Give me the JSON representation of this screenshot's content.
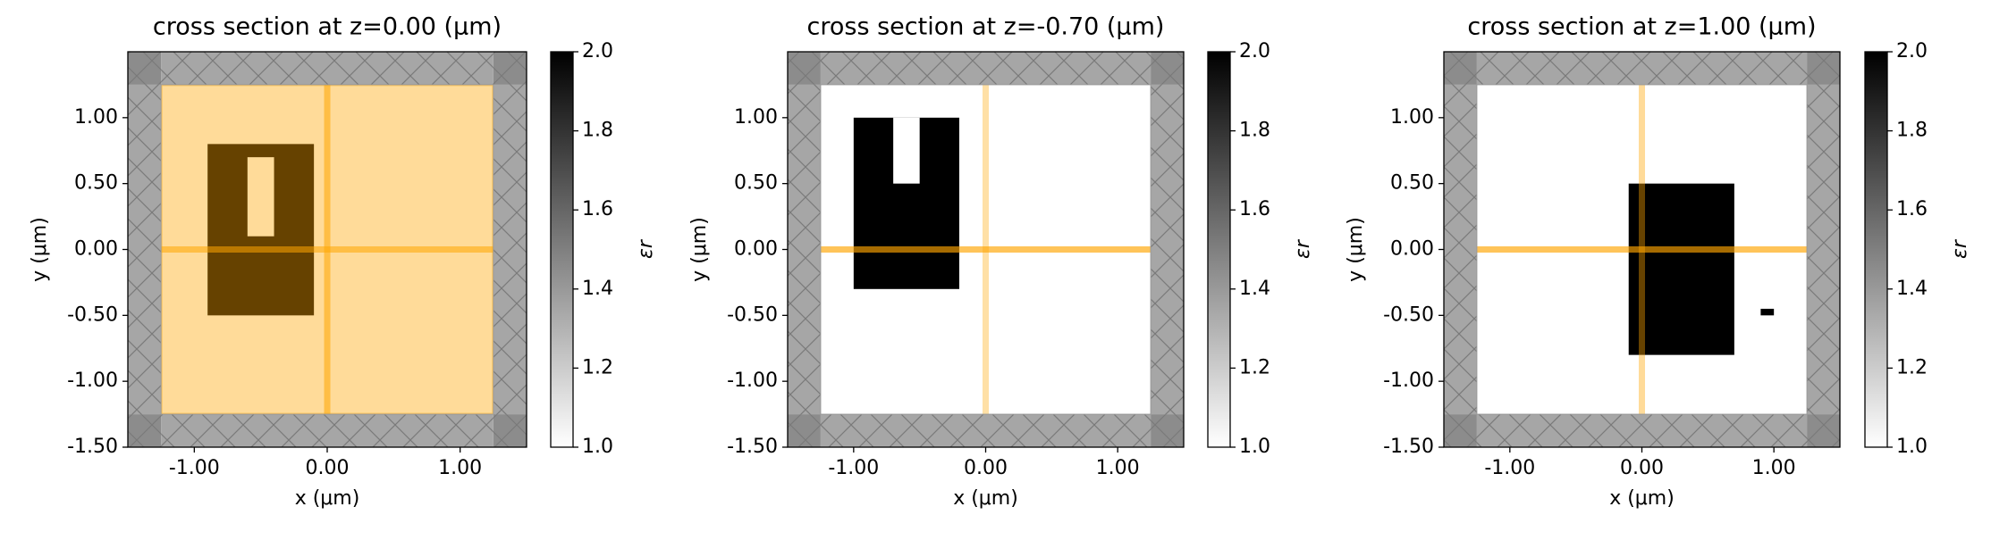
{
  "chart_data": [
    {
      "type": "structure",
      "title": "cross section at z=0.00 (μm)",
      "xlabel": "x (μm)",
      "ylabel": "y (μm)",
      "xlim": [
        -1.5,
        1.5
      ],
      "ylim": [
        -1.5,
        1.5
      ],
      "xticks": [
        {
          "value": -1,
          "label": "-1.00"
        },
        {
          "value": 0,
          "label": "0.00"
        },
        {
          "value": 1,
          "label": "1.00"
        }
      ],
      "yticks": [
        {
          "value": -1.5,
          "label": "-1.50"
        },
        {
          "value": -1,
          "label": "-1.00"
        },
        {
          "value": -0.5,
          "label": "-0.50"
        },
        {
          "value": 0,
          "label": "0.00"
        },
        {
          "value": 0.5,
          "label": "0.50"
        },
        {
          "value": 1,
          "label": "1.00"
        }
      ],
      "domain_x": [
        -1.25,
        1.25
      ],
      "domain_y": [
        -1.25,
        1.25
      ],
      "shapes": [
        {
          "x": [
            -0.9,
            -0.1
          ],
          "y": [
            -0.5,
            0.8
          ],
          "eps": 2
        },
        {
          "x": [
            -0.6,
            -0.4
          ],
          "y": [
            0.1,
            0.7
          ],
          "eps": 1
        }
      ],
      "sources": [
        {
          "x": [
            -1.25,
            1.25
          ],
          "y": [
            -1.25,
            1.25
          ],
          "color": "#ffa500",
          "alpha": 0.4
        }
      ],
      "monitors": [
        {
          "x": [
            -1.25,
            1.25
          ],
          "y": [
            0,
            0
          ],
          "color": "#ffa500",
          "alpha": 0.55
        },
        {
          "x": [
            0,
            0
          ],
          "y": [
            -1.25,
            1.25
          ],
          "color": "#ffa500",
          "alpha": 0.55
        }
      ],
      "colorbar": {
        "label": "εr",
        "clim": [
          1,
          2
        ],
        "ticks": [
          {
            "value": 1,
            "label": "1.0"
          },
          {
            "value": 1.2,
            "label": "1.2"
          },
          {
            "value": 1.4,
            "label": "1.4"
          },
          {
            "value": 1.6,
            "label": "1.6"
          },
          {
            "value": 1.8,
            "label": "1.8"
          },
          {
            "value": 2,
            "label": "2.0"
          }
        ]
      }
    },
    {
      "type": "structure",
      "title": "cross section at z=-0.70 (μm)",
      "xlabel": "x (μm)",
      "ylabel": "y (μm)",
      "xlim": [
        -1.5,
        1.5
      ],
      "ylim": [
        -1.5,
        1.5
      ],
      "xticks": [
        {
          "value": -1,
          "label": "-1.00"
        },
        {
          "value": 0,
          "label": "0.00"
        },
        {
          "value": 1,
          "label": "1.00"
        }
      ],
      "yticks": [
        {
          "value": -1.5,
          "label": "-1.50"
        },
        {
          "value": -1,
          "label": "-1.00"
        },
        {
          "value": -0.5,
          "label": "-0.50"
        },
        {
          "value": 0,
          "label": "0.00"
        },
        {
          "value": 0.5,
          "label": "0.50"
        },
        {
          "value": 1,
          "label": "1.00"
        }
      ],
      "domain_x": [
        -1.25,
        1.25
      ],
      "domain_y": [
        -1.25,
        1.25
      ],
      "shapes": [
        {
          "x": [
            -1.0,
            -0.2
          ],
          "y": [
            -0.3,
            1.0
          ],
          "eps": 2
        },
        {
          "x": [
            -0.7,
            -0.5
          ],
          "y": [
            0.5,
            1.0
          ],
          "eps": 1
        }
      ],
      "sources": [],
      "monitors": [
        {
          "x": [
            -1.25,
            1.25
          ],
          "y": [
            0,
            0
          ],
          "color": "#ffa500",
          "alpha": 0.65
        },
        {
          "x": [
            0,
            0
          ],
          "y": [
            -1.25,
            1.25
          ],
          "color": "#ffa500",
          "alpha": 0.35
        }
      ],
      "colorbar": {
        "label": "εr",
        "clim": [
          1,
          2
        ],
        "ticks": [
          {
            "value": 1,
            "label": "1.0"
          },
          {
            "value": 1.2,
            "label": "1.2"
          },
          {
            "value": 1.4,
            "label": "1.4"
          },
          {
            "value": 1.6,
            "label": "1.6"
          },
          {
            "value": 1.8,
            "label": "1.8"
          },
          {
            "value": 2,
            "label": "2.0"
          }
        ]
      }
    },
    {
      "type": "structure",
      "title": "cross section at z=1.00 (μm)",
      "xlabel": "x (μm)",
      "ylabel": "y (μm)",
      "xlim": [
        -1.5,
        1.5
      ],
      "ylim": [
        -1.5,
        1.5
      ],
      "xticks": [
        {
          "value": -1,
          "label": "-1.00"
        },
        {
          "value": 0,
          "label": "0.00"
        },
        {
          "value": 1,
          "label": "1.00"
        }
      ],
      "yticks": [
        {
          "value": -1.5,
          "label": "-1.50"
        },
        {
          "value": -1,
          "label": "-1.00"
        },
        {
          "value": -0.5,
          "label": "-0.50"
        },
        {
          "value": 0,
          "label": "0.00"
        },
        {
          "value": 0.5,
          "label": "0.50"
        },
        {
          "value": 1,
          "label": "1.00"
        }
      ],
      "domain_x": [
        -1.25,
        1.25
      ],
      "domain_y": [
        -1.25,
        1.25
      ],
      "shapes": [
        {
          "x": [
            -0.1,
            0.7
          ],
          "y": [
            -0.8,
            0.5
          ],
          "eps": 2
        },
        {
          "x": [
            0.9,
            1.0
          ],
          "y": [
            -0.5,
            -0.45
          ],
          "eps": 2
        }
      ],
      "sources": [],
      "monitors": [
        {
          "x": [
            -1.25,
            1.25
          ],
          "y": [
            0,
            0
          ],
          "color": "#ffa500",
          "alpha": 0.65
        },
        {
          "x": [
            0,
            0
          ],
          "y": [
            -1.25,
            1.25
          ],
          "color": "#ffa500",
          "alpha": 0.4
        }
      ],
      "colorbar": {
        "label": "εr",
        "clim": [
          1,
          2
        ],
        "ticks": [
          {
            "value": 1,
            "label": "1.0"
          },
          {
            "value": 1.2,
            "label": "1.2"
          },
          {
            "value": 1.4,
            "label": "1.4"
          },
          {
            "value": 1.6,
            "label": "1.6"
          },
          {
            "value": 1.8,
            "label": "1.8"
          },
          {
            "value": 2,
            "label": "2.0"
          }
        ]
      }
    }
  ]
}
